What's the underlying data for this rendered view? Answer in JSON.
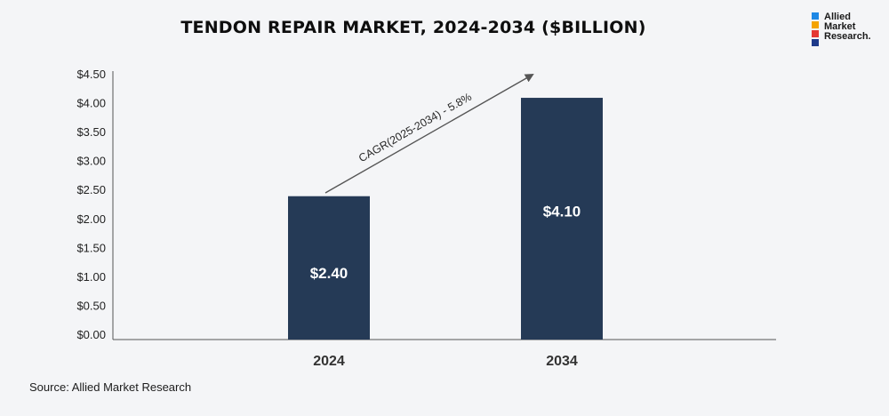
{
  "title": "TENDON REPAIR MARKET, 2024-2034 ($BILLION)",
  "source": "Source: Allied Market Research",
  "logo": {
    "lines": [
      "Allied",
      "Market",
      "Research."
    ],
    "colors": [
      "#1e88e5",
      "#f4a300",
      "#e53935",
      "#1e3a8a"
    ]
  },
  "colors": {
    "bar": "#253a56",
    "axis": "#555555",
    "arrow": "#555555"
  },
  "chart_data": {
    "type": "bar",
    "title": "TENDON REPAIR MARKET, 2024-2034 ($BILLION)",
    "categories": [
      "2024",
      "2034"
    ],
    "values": [
      2.4,
      4.1
    ],
    "data_labels": [
      "$2.40",
      "$4.10"
    ],
    "ylim": [
      0,
      4.5
    ],
    "yticks": [
      0,
      0.5,
      1.0,
      1.5,
      2.0,
      2.5,
      3.0,
      3.5,
      4.0,
      4.5
    ],
    "ytick_labels": [
      "$0.00",
      "$0.50",
      "$1.00",
      "$1.50",
      "$2.00",
      "$2.50",
      "$3.00",
      "$3.50",
      "$4.00",
      "$4.50"
    ],
    "xlabel": "",
    "ylabel": "",
    "grid": false,
    "annotation": "CAGR(2025-2034) - 5.8%"
  }
}
